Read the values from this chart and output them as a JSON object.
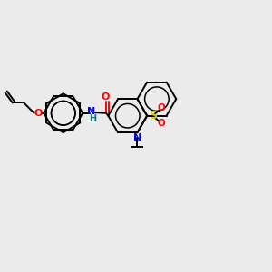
{
  "background_color": "#ebebeb",
  "bond_color": "#000000",
  "atom_colors": {
    "O": "#ff0000",
    "N": "#0000ff",
    "H": "#008080",
    "S": "#cccc00"
  },
  "figsize": [
    3.0,
    3.0
  ],
  "dpi": 100
}
